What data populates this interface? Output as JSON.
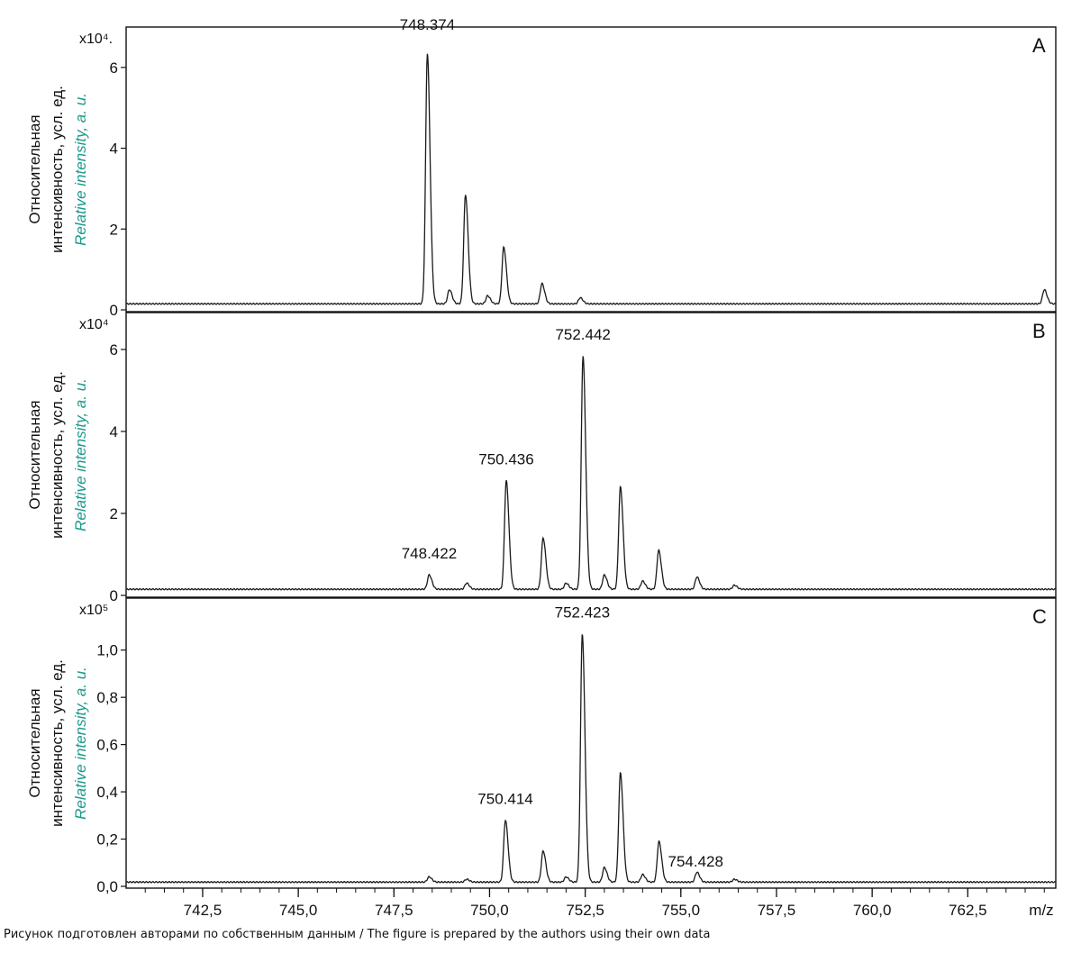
{
  "caption": "Рисунок подготовлен авторами по собственным данным / The figure is prepared by the authors using their own data",
  "colors": {
    "line": "#1a1a1a",
    "english_label": "#1a9a8a",
    "axis": "#111111"
  },
  "shared_x_axis": {
    "label": "m/z",
    "ticks": [
      742.5,
      745.0,
      747.5,
      750.0,
      752.5,
      755.0,
      757.5,
      760.0,
      762.5
    ],
    "tick_labels": [
      "742,5",
      "745,0",
      "747,5",
      "750,0",
      "752,5",
      "755,0",
      "757,5",
      "760,0",
      "762,5"
    ],
    "xlim": [
      740.5,
      764.8
    ]
  },
  "chart_data": [
    {
      "type": "line",
      "panel_label": "A",
      "ylabel_ru_line1": "Относительная",
      "ylabel_ru_line2": "интенсивность, усл. ед.",
      "ylabel_en": "Relative intensity, a. u.",
      "multiplier": "x10⁴.",
      "ylim": [
        0,
        7.0
      ],
      "yticks": [
        0,
        2,
        4,
        6
      ],
      "ytick_labels": [
        "0",
        "2",
        "4",
        "6"
      ],
      "baseline": 0.15,
      "peaks": [
        {
          "x": 748.374,
          "y": 6.35,
          "label": "748.374"
        },
        {
          "x": 748.95,
          "y": 0.5
        },
        {
          "x": 749.37,
          "y": 2.85
        },
        {
          "x": 749.95,
          "y": 0.35
        },
        {
          "x": 750.37,
          "y": 1.55
        },
        {
          "x": 751.37,
          "y": 0.65
        },
        {
          "x": 752.37,
          "y": 0.3
        },
        {
          "x": 764.5,
          "y": 0.5
        }
      ]
    },
    {
      "type": "line",
      "panel_label": "B",
      "ylabel_ru_line1": "Относительная",
      "ylabel_ru_line2": "интенсивность, усл. ед.",
      "ylabel_en": "Relative intensity, a. u.",
      "multiplier": "x10⁴",
      "ylim": [
        0,
        6.9
      ],
      "yticks": [
        0,
        2,
        4,
        6
      ],
      "ytick_labels": [
        "0",
        "2",
        "4",
        "6"
      ],
      "baseline": 0.15,
      "peaks": [
        {
          "x": 748.422,
          "y": 0.5,
          "label": "748.422"
        },
        {
          "x": 749.4,
          "y": 0.3
        },
        {
          "x": 750.436,
          "y": 2.8,
          "label": "750.436"
        },
        {
          "x": 751.4,
          "y": 1.4
        },
        {
          "x": 752.0,
          "y": 0.3
        },
        {
          "x": 752.442,
          "y": 5.85,
          "label": "752.442"
        },
        {
          "x": 753.0,
          "y": 0.5
        },
        {
          "x": 753.42,
          "y": 2.65
        },
        {
          "x": 754.0,
          "y": 0.35
        },
        {
          "x": 754.42,
          "y": 1.1
        },
        {
          "x": 755.42,
          "y": 0.45
        },
        {
          "x": 756.4,
          "y": 0.25
        }
      ]
    },
    {
      "type": "line",
      "panel_label": "C",
      "ylabel_ru_line1": "Относительная",
      "ylabel_ru_line2": "интенсивность, усл. ед.",
      "ylabel_en": "Relative intensity, a. u.",
      "multiplier": "x10⁵",
      "ylim": [
        0,
        1.22
      ],
      "yticks": [
        0,
        0.2,
        0.4,
        0.6,
        0.8,
        1.0
      ],
      "ytick_labels": [
        "0,0",
        "0,2",
        "0,4",
        "0,6",
        "0,8",
        "1,0"
      ],
      "baseline": 0.018,
      "peaks": [
        {
          "x": 748.42,
          "y": 0.04
        },
        {
          "x": 749.4,
          "y": 0.03
        },
        {
          "x": 750.414,
          "y": 0.28,
          "label": "750.414"
        },
        {
          "x": 751.4,
          "y": 0.15
        },
        {
          "x": 752.0,
          "y": 0.04
        },
        {
          "x": 752.423,
          "y": 1.07,
          "label": "752.423"
        },
        {
          "x": 753.0,
          "y": 0.08
        },
        {
          "x": 753.42,
          "y": 0.48
        },
        {
          "x": 754.0,
          "y": 0.05
        },
        {
          "x": 754.428,
          "y": 0.19,
          "label": "754.428"
        },
        {
          "x": 755.42,
          "y": 0.06
        },
        {
          "x": 756.4,
          "y": 0.03
        }
      ]
    }
  ]
}
